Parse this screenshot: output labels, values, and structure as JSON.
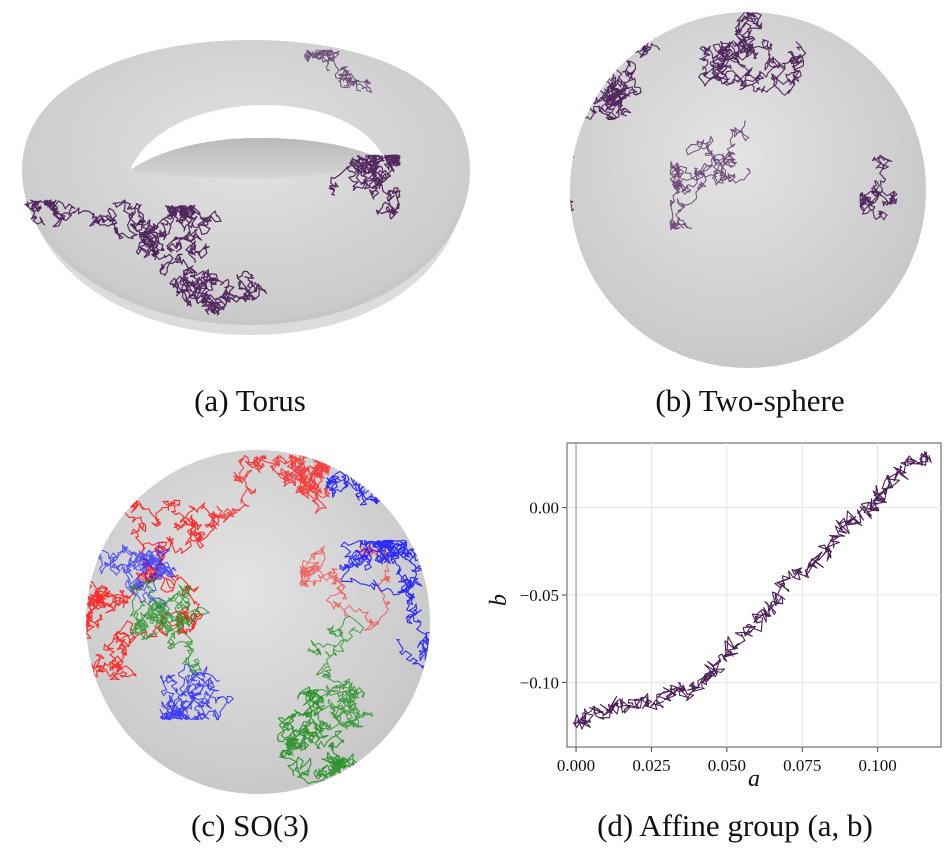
{
  "figure": {
    "panels": [
      {
        "id": "a",
        "caption": "(a)  Torus"
      },
      {
        "id": "b",
        "caption": "(b)  Two-sphere"
      },
      {
        "id": "c",
        "caption": "(c)  SO(3)"
      },
      {
        "id": "d",
        "caption": "(d)  Affine group (a, b)"
      }
    ],
    "colors": {
      "surface": "#d6d6d6",
      "path": "#4b1e57",
      "red": "#ff1a1a",
      "green": "#1f8f1f",
      "blue": "#1a1aff"
    }
  },
  "chart_data": {
    "type": "line",
    "xlabel": "a",
    "ylabel": "b",
    "xlim": [
      -0.003,
      0.121
    ],
    "ylim": [
      -0.137,
      0.037
    ],
    "xticks": [
      "0.000",
      "0.025",
      "0.050",
      "0.075",
      "0.100"
    ],
    "yticks": [
      "0.00",
      "−0.05",
      "−0.10"
    ],
    "xtick_values": [
      0.0,
      0.025,
      0.05,
      0.075,
      0.1
    ],
    "ytick_values": [
      0.0,
      -0.05,
      -0.1
    ],
    "grid": true,
    "series": [
      {
        "x": [
          0.0,
          0.003,
          0.006,
          0.01,
          0.014,
          0.018,
          0.022,
          0.026,
          0.03,
          0.034,
          0.038,
          0.042,
          0.045,
          0.048,
          0.052,
          0.056,
          0.06,
          0.063,
          0.066,
          0.068,
          0.072,
          0.076,
          0.08,
          0.084,
          0.087,
          0.09,
          0.094,
          0.098,
          0.1,
          0.102,
          0.106,
          0.11,
          0.114,
          0.117
        ],
        "y": [
          -0.124,
          -0.122,
          -0.118,
          -0.116,
          -0.112,
          -0.114,
          -0.11,
          -0.112,
          -0.108,
          -0.104,
          -0.106,
          -0.1,
          -0.094,
          -0.088,
          -0.08,
          -0.072,
          -0.066,
          -0.06,
          -0.055,
          -0.046,
          -0.04,
          -0.036,
          -0.03,
          -0.022,
          -0.015,
          -0.008,
          -0.004,
          0.0,
          0.004,
          0.01,
          0.018,
          0.024,
          0.028,
          0.03
        ]
      }
    ]
  }
}
